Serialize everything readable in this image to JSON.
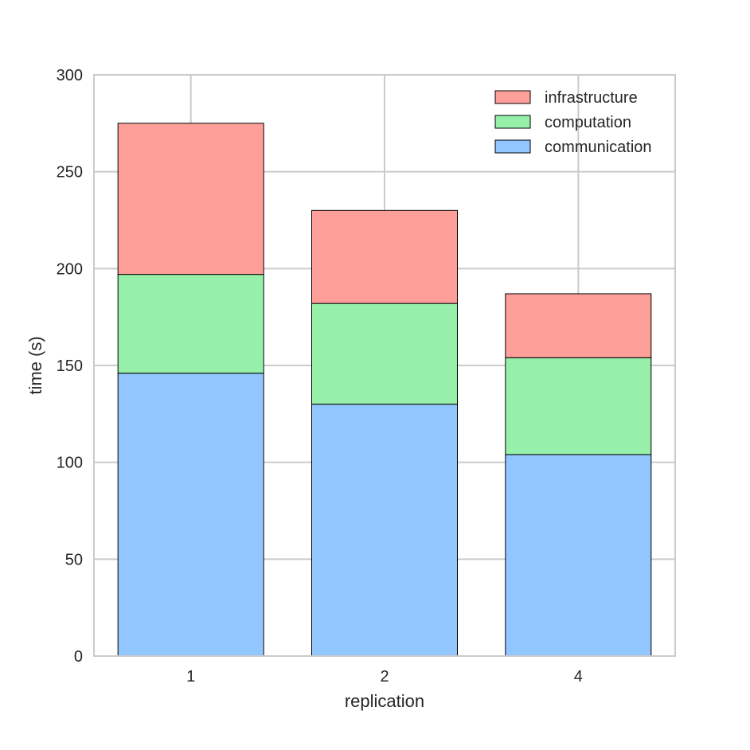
{
  "chart_data": {
    "type": "bar",
    "stacked": true,
    "title": "",
    "xlabel": "replication",
    "ylabel": "time (s)",
    "categories": [
      "1",
      "2",
      "4"
    ],
    "ylim": [
      0,
      300
    ],
    "yticks": [
      0,
      50,
      100,
      150,
      200,
      250,
      300
    ],
    "grid": true,
    "legend_position": "top-right",
    "series": [
      {
        "name": "communication",
        "color": "#92c6ff",
        "values": [
          146,
          130,
          104
        ]
      },
      {
        "name": "computation",
        "color": "#97f0aa",
        "values": [
          51,
          52,
          50
        ]
      },
      {
        "name": "infrastructure",
        "color": "#ff9f9a",
        "values": [
          78,
          48,
          33
        ]
      }
    ],
    "legend_order": [
      "infrastructure",
      "computation",
      "communication"
    ]
  }
}
